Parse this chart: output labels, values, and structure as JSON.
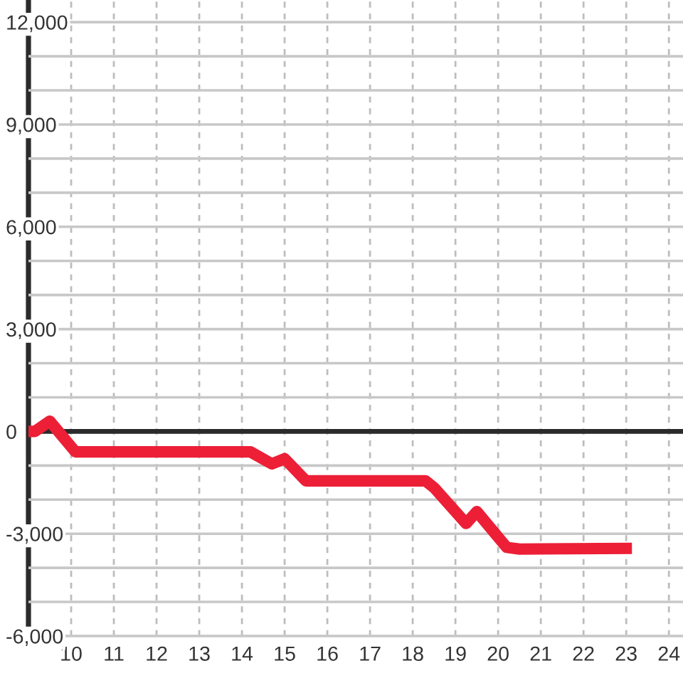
{
  "chart_data": {
    "type": "line",
    "x": [
      9.0,
      9.15,
      9.5,
      10.1,
      14.2,
      14.7,
      15.0,
      15.5,
      18.3,
      18.5,
      19.25,
      19.5,
      20.2,
      20.5,
      23.0
    ],
    "values": [
      0,
      0,
      300,
      -600,
      -600,
      -950,
      -800,
      -1450,
      -1450,
      -1650,
      -2700,
      -2350,
      -3400,
      -3450,
      -3430
    ],
    "color": "#ec1f37",
    "xlim": [
      9,
      24.33
    ],
    "xticks": [
      10,
      11,
      12,
      13,
      14,
      15,
      16,
      17,
      18,
      19,
      20,
      21,
      22,
      23,
      24
    ],
    "ylim": [
      -6000,
      12650
    ],
    "yticks": [
      {
        "value": -6000,
        "label": "-6,000"
      },
      {
        "value": -5000,
        "label": null
      },
      {
        "value": -4000,
        "label": null
      },
      {
        "value": -3000,
        "label": "-3,000"
      },
      {
        "value": -2000,
        "label": null
      },
      {
        "value": -1000,
        "label": null
      },
      0,
      {
        "value": 1000,
        "label": null
      },
      {
        "value": 2000,
        "label": null
      },
      {
        "value": 3000,
        "label": "3,000"
      },
      {
        "value": 4000,
        "label": null
      },
      {
        "value": 5000,
        "label": null
      },
      {
        "value": 6000,
        "label": "6,000"
      },
      {
        "value": 7000,
        "label": null
      },
      {
        "value": 8000,
        "label": null
      },
      {
        "value": 9000,
        "label": "9,000"
      },
      {
        "value": 10000,
        "label": null
      },
      {
        "value": 11000,
        "label": null
      },
      {
        "value": 12000,
        "label": "12,000"
      }
    ],
    "grid": true,
    "ref_lines": [
      {
        "axis": "y",
        "value": 0,
        "color": "#2b2b2b"
      }
    ]
  }
}
